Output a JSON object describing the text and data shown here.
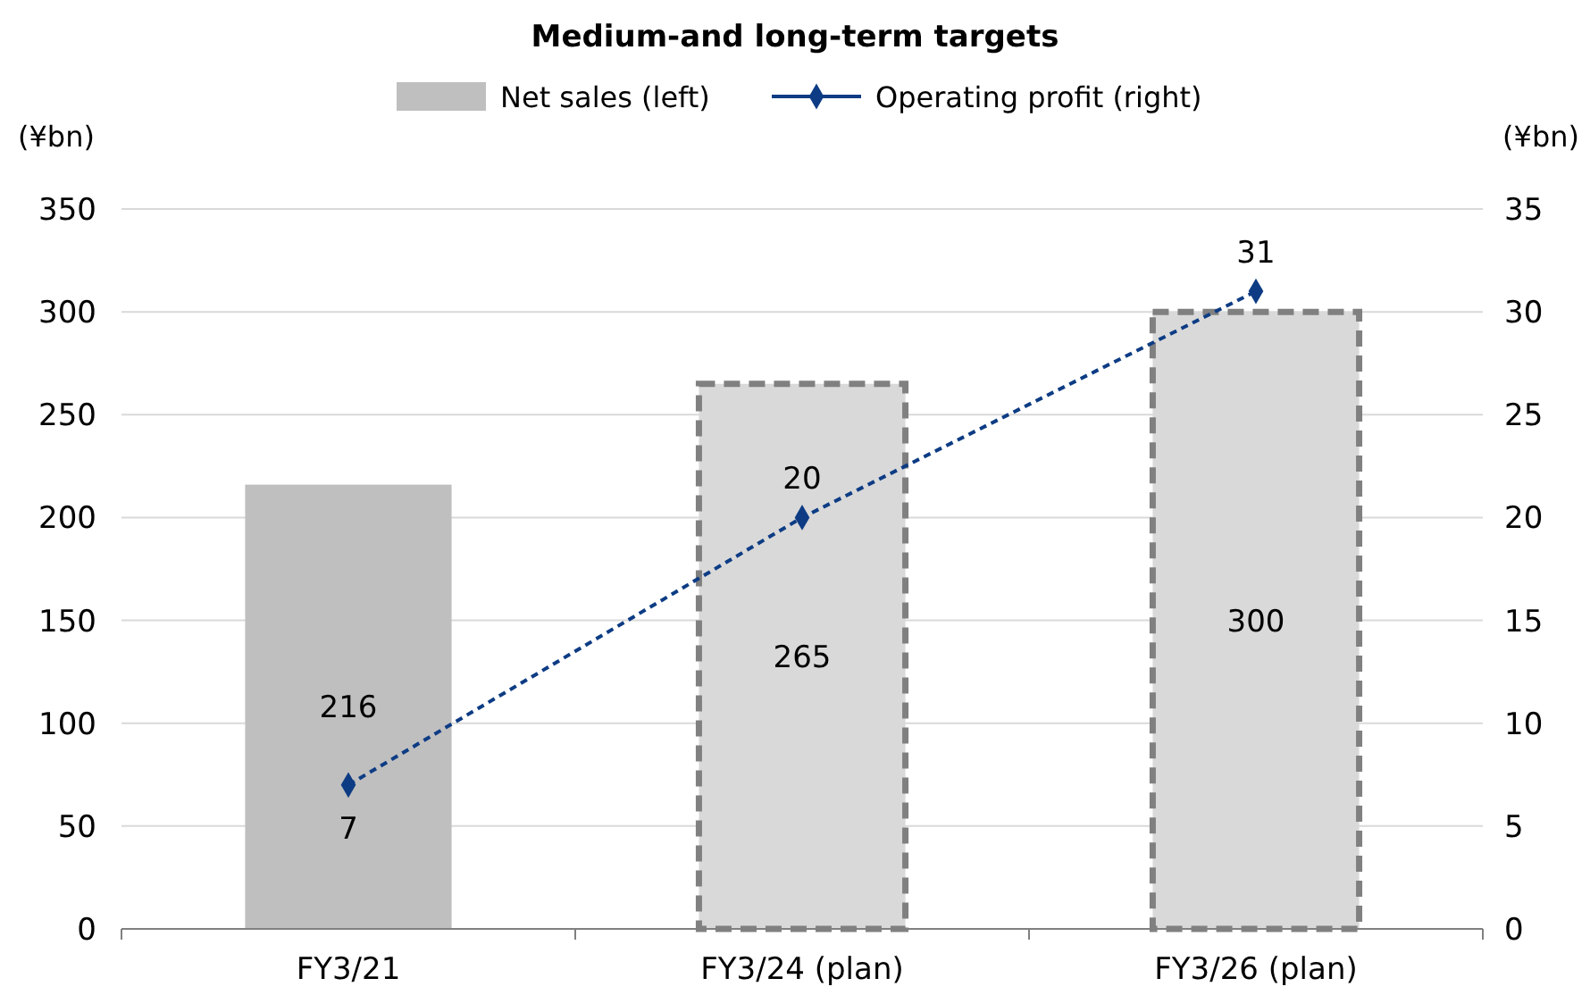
{
  "chart_data": {
    "type": "bar",
    "title": "Medium-and long-term targets",
    "ylabel": "(¥bn)",
    "y2label": "(¥bn)",
    "categories": [
      "FY3/21",
      "FY3/24 (plan)",
      "FY3/26 (plan)"
    ],
    "series": [
      {
        "name": "Net sales (left)",
        "color": "#bfbfbf",
        "colors": [
          "#bfbfbf",
          "#d9d9d9",
          "#d9d9d9"
        ],
        "values": [
          216,
          265,
          300
        ]
      },
      {
        "name": "Operating profit (right)",
        "type": "line",
        "axis": "y2",
        "color": "#0d3c84",
        "marker": "diamond",
        "line_style": "dashed",
        "values": [
          7,
          20,
          31
        ]
      }
    ],
    "ylim": [
      0,
      350
    ],
    "yticks": [
      0,
      50,
      100,
      150,
      200,
      250,
      300,
      350
    ],
    "y2lim": [
      0,
      35
    ],
    "y2ticks": [
      0,
      5,
      10,
      15,
      20,
      25,
      30,
      35
    ],
    "grid": "y",
    "legend": "top",
    "data_labels": true
  }
}
